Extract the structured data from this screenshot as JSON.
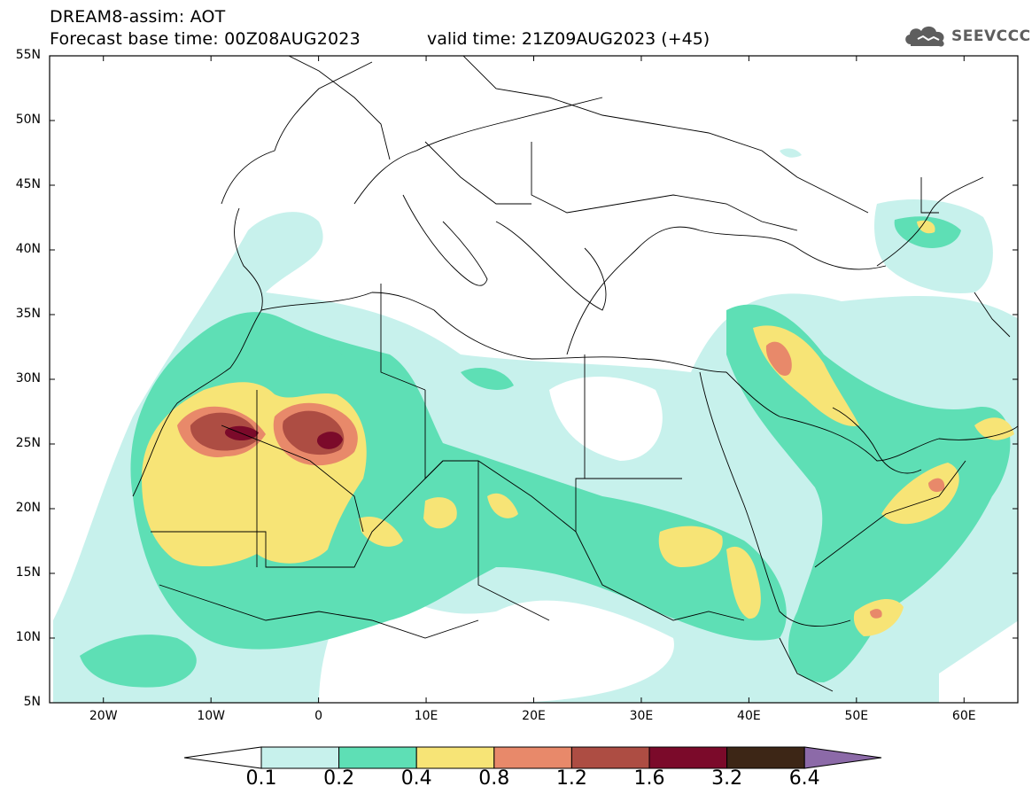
{
  "header": {
    "line1": "DREAM8-assim: AOT",
    "line2": "Forecast base time: 00Z08AUG2023",
    "valid": "valid time: 21Z09AUG2023 (+45)"
  },
  "logo": {
    "text": "SEEVCCC",
    "icon": "cloud-icon"
  },
  "map": {
    "lat_labels": [
      "55N",
      "50N",
      "45N",
      "40N",
      "35N",
      "30N",
      "25N",
      "20N",
      "15N",
      "10N",
      "5N"
    ],
    "lon_labels": [
      "20W",
      "10W",
      "0",
      "10E",
      "20E",
      "30E",
      "40E",
      "50E",
      "60E"
    ],
    "lat_values": [
      55,
      50,
      45,
      40,
      35,
      30,
      25,
      20,
      15,
      10,
      5
    ],
    "lon_values": [
      -20,
      -10,
      0,
      10,
      20,
      30,
      40,
      50,
      60
    ],
    "lon_range": [
      -25,
      65
    ],
    "lat_range": [
      5,
      55
    ]
  },
  "colorbar": {
    "labels": [
      "0.1",
      "0.2",
      "0.4",
      "0.8",
      "1.2",
      "1.6",
      "3.2",
      "6.4"
    ],
    "colors": [
      "#ffffff",
      "#c7f1ec",
      "#5edfb5",
      "#f7e476",
      "#e8896a",
      "#ad4d43",
      "#7b0a2a",
      "#3d2616",
      "#8c6aa8"
    ]
  }
}
